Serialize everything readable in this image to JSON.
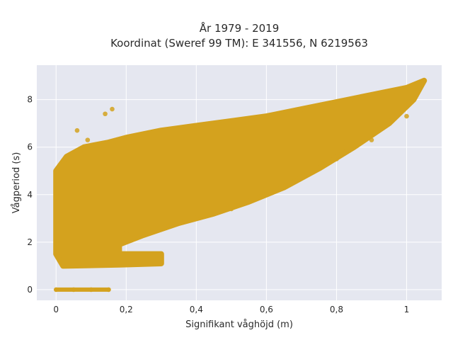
{
  "chart_data": {
    "type": "scatter",
    "title": "År 1979 - 2019",
    "subtitle": "Koordinat (Sweref 99 TM): E 341556, N 6219563",
    "xlabel": "Signifikant våghöjd (m)",
    "ylabel": "Vågperiod (s)",
    "xlim": [
      -0.055,
      1.1
    ],
    "ylim": [
      -0.45,
      9.45
    ],
    "x_ticks": [
      0,
      0.2,
      0.4,
      0.6,
      0.8,
      1
    ],
    "x_tick_labels": [
      "0",
      "0,2",
      "0,4",
      "0,6",
      "0,8",
      "1"
    ],
    "y_ticks": [
      0,
      2,
      4,
      6,
      8
    ],
    "y_tick_labels": [
      "0",
      "2",
      "4",
      "6",
      "8"
    ],
    "grid": true,
    "legend": "none",
    "point_color": "#D4A21E",
    "plot_background": "#E5E7F0",
    "series": [
      {
        "values": [
          {
            "x": 0.0,
            "y": 0.0
          },
          {
            "x": 0.05,
            "y": 0.0
          },
          {
            "x": 0.1,
            "y": 0.0
          },
          {
            "x": 0.15,
            "y": 0.0
          },
          {
            "x": 0.0,
            "y": 1.6
          },
          {
            "x": 0.0,
            "y": 2.3
          },
          {
            "x": 0.0,
            "y": 3.3
          },
          {
            "x": 0.0,
            "y": 4.1
          },
          {
            "x": 0.0,
            "y": 4.9
          },
          {
            "x": 0.02,
            "y": 5.1
          },
          {
            "x": 0.04,
            "y": 5.6
          },
          {
            "x": 0.06,
            "y": 6.7
          },
          {
            "x": 0.09,
            "y": 6.3
          },
          {
            "x": 0.14,
            "y": 7.4
          },
          {
            "x": 0.16,
            "y": 7.6
          },
          {
            "x": 0.1,
            "y": 1.1
          },
          {
            "x": 0.2,
            "y": 1.2
          },
          {
            "x": 0.3,
            "y": 1.2
          },
          {
            "x": 0.15,
            "y": 3.4
          },
          {
            "x": 0.2,
            "y": 2.4
          },
          {
            "x": 0.3,
            "y": 2.6
          },
          {
            "x": 0.4,
            "y": 3.0
          },
          {
            "x": 0.5,
            "y": 3.4
          },
          {
            "x": 0.6,
            "y": 4.0
          },
          {
            "x": 0.7,
            "y": 4.7
          },
          {
            "x": 0.8,
            "y": 5.5
          },
          {
            "x": 0.9,
            "y": 6.3
          },
          {
            "x": 1.0,
            "y": 7.3
          },
          {
            "x": 1.05,
            "y": 8.8
          },
          {
            "x": 0.2,
            "y": 6.4
          },
          {
            "x": 0.3,
            "y": 6.7
          },
          {
            "x": 0.4,
            "y": 6.9
          },
          {
            "x": 0.5,
            "y": 7.1
          },
          {
            "x": 0.6,
            "y": 7.3
          },
          {
            "x": 0.7,
            "y": 7.6
          },
          {
            "x": 0.8,
            "y": 7.9
          },
          {
            "x": 0.9,
            "y": 8.2
          },
          {
            "x": 1.0,
            "y": 8.5
          }
        ]
      }
    ]
  }
}
